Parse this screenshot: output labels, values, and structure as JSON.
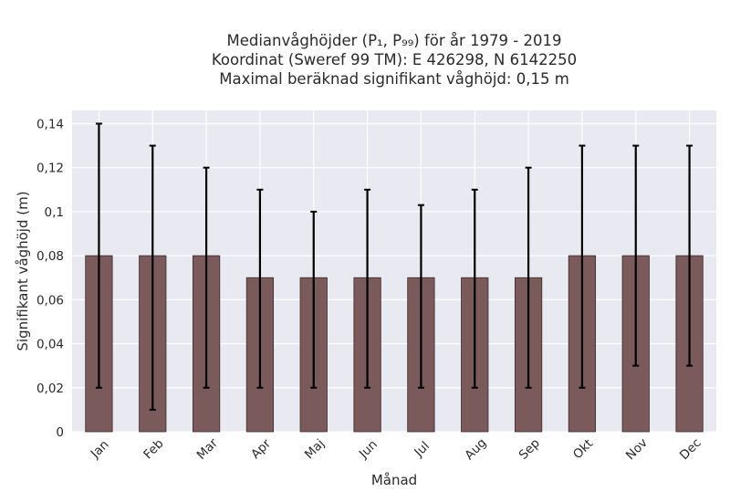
{
  "chart_data": {
    "type": "bar",
    "title_lines": [
      "Medianvåghöjder (P₁, P₉₉) för år 1979 - 2019",
      "Koordinat (Sweref 99 TM): E 426298, N 6142250",
      "Maximal beräknad signifikant våghöjd: 0,15 m"
    ],
    "xlabel": "Månad",
    "ylabel": "Signifikant våghöjd (m)",
    "categories": [
      "Jan",
      "Feb",
      "Mar",
      "Apr",
      "Maj",
      "Jun",
      "Jul",
      "Aug",
      "Sep",
      "Okt",
      "Nov",
      "Dec"
    ],
    "values": [
      0.08,
      0.08,
      0.08,
      0.07,
      0.07,
      0.07,
      0.07,
      0.07,
      0.07,
      0.08,
      0.08,
      0.08
    ],
    "p1": [
      0.02,
      0.01,
      0.02,
      0.02,
      0.02,
      0.02,
      0.02,
      0.02,
      0.02,
      0.02,
      0.03,
      0.03
    ],
    "p99": [
      0.14,
      0.13,
      0.12,
      0.11,
      0.1,
      0.11,
      0.103,
      0.11,
      0.12,
      0.13,
      0.13,
      0.13
    ],
    "ylim": [
      0,
      0.146
    ],
    "yticks": [
      0,
      0.02,
      0.04,
      0.06,
      0.08,
      0.1,
      0.12,
      0.14
    ],
    "ytick_labels": [
      "0",
      "0,02",
      "0,04",
      "0,06",
      "0,08",
      "0,1",
      "0,12",
      "0,14"
    ],
    "grid": true,
    "colors": {
      "bar": "#7a5a5a",
      "plot_background": "#e9e9f1",
      "grid": "#ffffff",
      "errorbar": "#000000"
    }
  }
}
